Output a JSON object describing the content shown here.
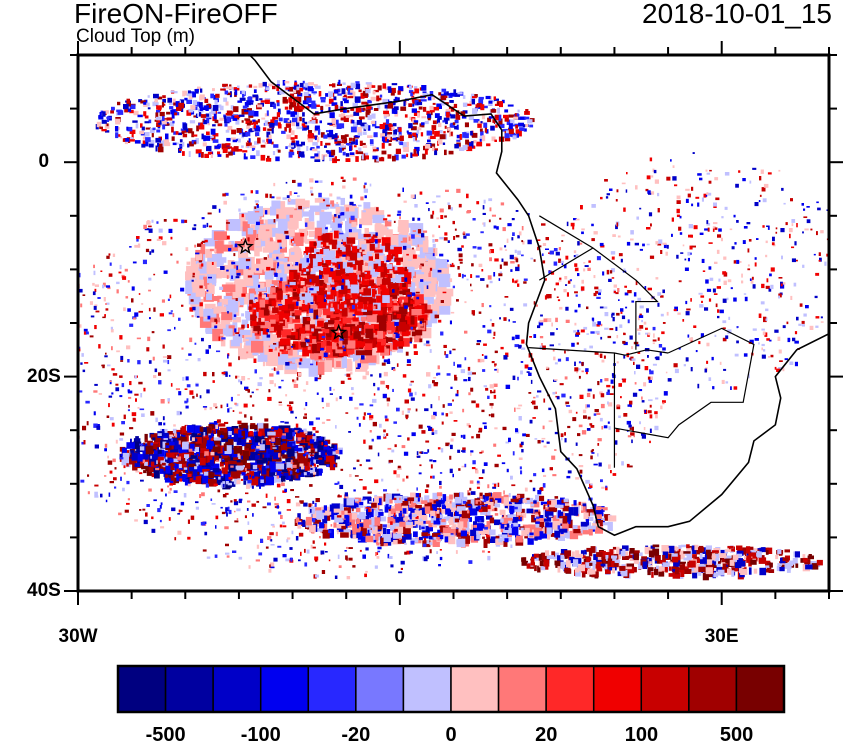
{
  "title": "FireON-FireOFF",
  "subtitle": "Cloud Top (m)",
  "date": "2018-10-01_15",
  "map": {
    "lon_range": [
      -30,
      40
    ],
    "lat_range": [
      -40,
      10
    ],
    "x_ticks": [
      {
        "lon": -30,
        "label": "30W"
      },
      {
        "lon": 0,
        "label": "0"
      },
      {
        "lon": 30,
        "label": "30E"
      }
    ],
    "y_ticks": [
      {
        "lat": 0,
        "label": "0"
      },
      {
        "lat": -20,
        "label": "20S"
      },
      {
        "lat": -40,
        "label": "40S"
      }
    ],
    "markers": [
      {
        "name": "star",
        "lon": -14.4,
        "lat": -7.9
      },
      {
        "name": "star",
        "lon": -5.7,
        "lat": -15.9
      }
    ]
  },
  "colorbar": {
    "colors": [
      "#000080",
      "#0000a0",
      "#0000c8",
      "#0000f0",
      "#2828ff",
      "#7878ff",
      "#c0c0ff",
      "#ffc0c0",
      "#ff7878",
      "#ff2828",
      "#f00000",
      "#c80000",
      "#a00000",
      "#780000"
    ],
    "labels": [
      {
        "boundary": 1,
        "label": "-500"
      },
      {
        "boundary": 3,
        "label": "-100"
      },
      {
        "boundary": 5,
        "label": "-20"
      },
      {
        "boundary": 7,
        "label": "0"
      },
      {
        "boundary": 9,
        "label": "20"
      },
      {
        "boundary": 11,
        "label": "100"
      },
      {
        "boundary": 13,
        "label": "500"
      }
    ]
  }
}
